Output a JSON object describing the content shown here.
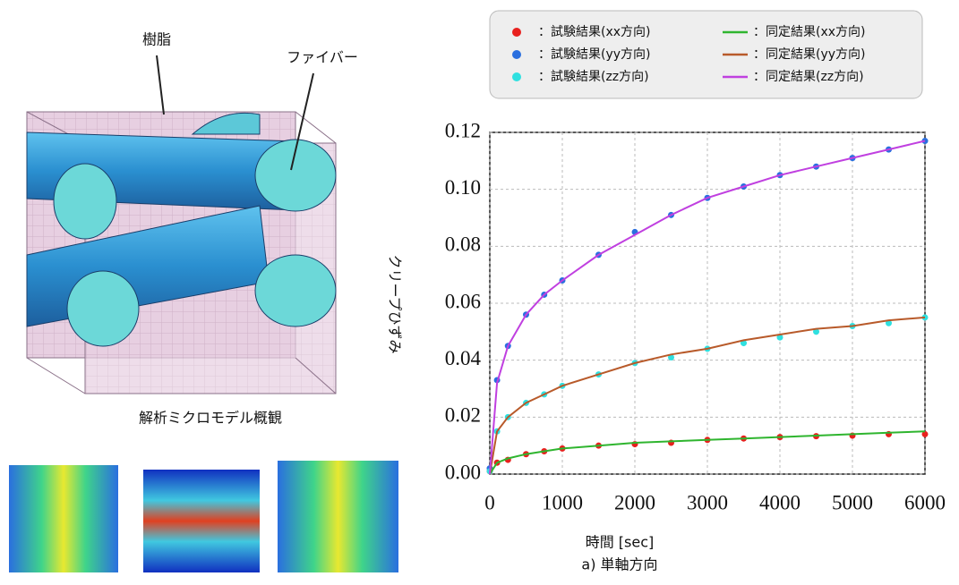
{
  "chart_data": {
    "type": "line",
    "ylabel": "クリープひずみ",
    "xlabel": "時間 [sec]",
    "caption": "a) 単軸方向",
    "x": [
      0,
      100,
      250,
      500,
      750,
      1000,
      1500,
      2000,
      2500,
      3000,
      3500,
      4000,
      4500,
      5000,
      5500,
      6000
    ],
    "series": [
      {
        "name": "：試験結果(xx方向)",
        "style": "markers",
        "color": "#e8201e",
        "values": [
          0.001,
          0.004,
          0.005,
          0.007,
          0.008,
          0.009,
          0.01,
          0.0105,
          0.011,
          0.012,
          0.0125,
          0.013,
          0.0133,
          0.0135,
          0.014,
          0.014
        ]
      },
      {
        "name": "：試験結果(yy方向)",
        "style": "markers",
        "color": "#2a6fdf",
        "values": [
          0.002,
          0.033,
          0.045,
          0.056,
          0.063,
          0.068,
          0.077,
          0.085,
          0.091,
          0.097,
          0.101,
          0.105,
          0.108,
          0.111,
          0.114,
          0.117
        ]
      },
      {
        "name": "：試験結果(zz方向)",
        "style": "markers",
        "color": "#2fe0e0",
        "values": [
          0.001,
          0.015,
          0.02,
          0.025,
          0.028,
          0.031,
          0.035,
          0.039,
          0.041,
          0.044,
          0.046,
          0.048,
          0.05,
          0.052,
          0.053,
          0.055
        ]
      },
      {
        "name": "：同定結果(xx方向)",
        "style": "line",
        "color": "#2fb52f",
        "values": [
          0,
          0.004,
          0.0055,
          0.007,
          0.008,
          0.009,
          0.01,
          0.011,
          0.0115,
          0.012,
          0.0125,
          0.013,
          0.0135,
          0.014,
          0.0145,
          0.015
        ]
      },
      {
        "name": "：同定結果(yy方向)",
        "style": "line",
        "color": "#b85a2a",
        "values": [
          0,
          0.015,
          0.02,
          0.025,
          0.028,
          0.031,
          0.035,
          0.039,
          0.042,
          0.044,
          0.047,
          0.049,
          0.051,
          0.052,
          0.054,
          0.055
        ]
      },
      {
        "name": "：同定結果(zz方向)",
        "style": "line",
        "color": "#c040e0",
        "values": [
          0,
          0.032,
          0.045,
          0.056,
          0.063,
          0.068,
          0.077,
          0.084,
          0.091,
          0.097,
          0.101,
          0.105,
          0.108,
          0.111,
          0.114,
          0.117
        ]
      }
    ],
    "xlim": [
      0,
      6000
    ],
    "xticks": [
      0,
      1000,
      2000,
      3000,
      4000,
      5000,
      6000
    ],
    "ylim": [
      0,
      0.12
    ],
    "yticks": [
      {
        "value": 0,
        "label": "0.00"
      },
      0.02,
      0.04,
      0.06,
      0.08,
      {
        "value": 0.1,
        "label": "0.10"
      },
      {
        "value": 0.12,
        "label": "0.12"
      }
    ],
    "grid": true
  },
  "diagram": {
    "labels": [
      "樹脂",
      "ファイバー"
    ],
    "caption": "解析ミクロモデル概観"
  }
}
